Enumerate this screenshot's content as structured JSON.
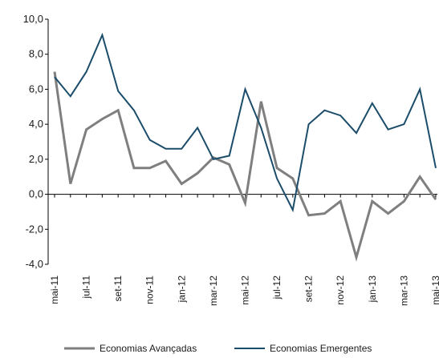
{
  "chart_data": {
    "type": "line",
    "categories": [
      "mai-11",
      "jun-11",
      "jul-11",
      "ago-11",
      "set-11",
      "out-11",
      "nov-11",
      "dez-11",
      "jan-12",
      "fev-12",
      "mar-12",
      "abr-12",
      "mai-12",
      "jun-12",
      "jul-12",
      "ago-12",
      "set-12",
      "out-12",
      "nov-12",
      "dez-12",
      "jan-13",
      "fev-13",
      "mar-13",
      "abr-13",
      "mai-13"
    ],
    "x_tick_labels": [
      "mai-11",
      "jul-11",
      "set-11",
      "nov-11",
      "jan-12",
      "mar-12",
      "mai-12",
      "jul-12",
      "set-12",
      "nov-12",
      "jan-13",
      "mar-13",
      "mai-13"
    ],
    "y_tick_labels": [
      "10,0",
      "8,0",
      "6,0",
      "4,0",
      "2,0",
      "0,0",
      "-2,0",
      "-4,0"
    ],
    "y_ticks": [
      10,
      8,
      6,
      4,
      2,
      0,
      -2,
      -4
    ],
    "ylim": [
      -4,
      10
    ],
    "grid": false,
    "legend_position": "bottom",
    "series": [
      {
        "name": "Economias Avançadas",
        "color": "#7f7f7f",
        "values": [
          7.0,
          0.6,
          3.7,
          4.3,
          4.8,
          1.5,
          1.5,
          1.9,
          0.6,
          1.2,
          2.1,
          1.7,
          -0.5,
          5.3,
          1.5,
          0.9,
          -1.2,
          -1.1,
          -0.4,
          -3.6,
          -0.4,
          -1.1,
          -0.4,
          1.0,
          -0.3
        ]
      },
      {
        "name": "Economias Emergentes",
        "color": "#1b4d6b",
        "values": [
          6.7,
          5.6,
          7.0,
          9.1,
          5.9,
          4.8,
          3.1,
          2.6,
          2.6,
          3.8,
          2.0,
          2.2,
          6.0,
          3.8,
          0.9,
          -0.9,
          4.0,
          4.8,
          4.5,
          3.5,
          5.2,
          3.7,
          4.0,
          6.0,
          1.5
        ]
      }
    ]
  }
}
